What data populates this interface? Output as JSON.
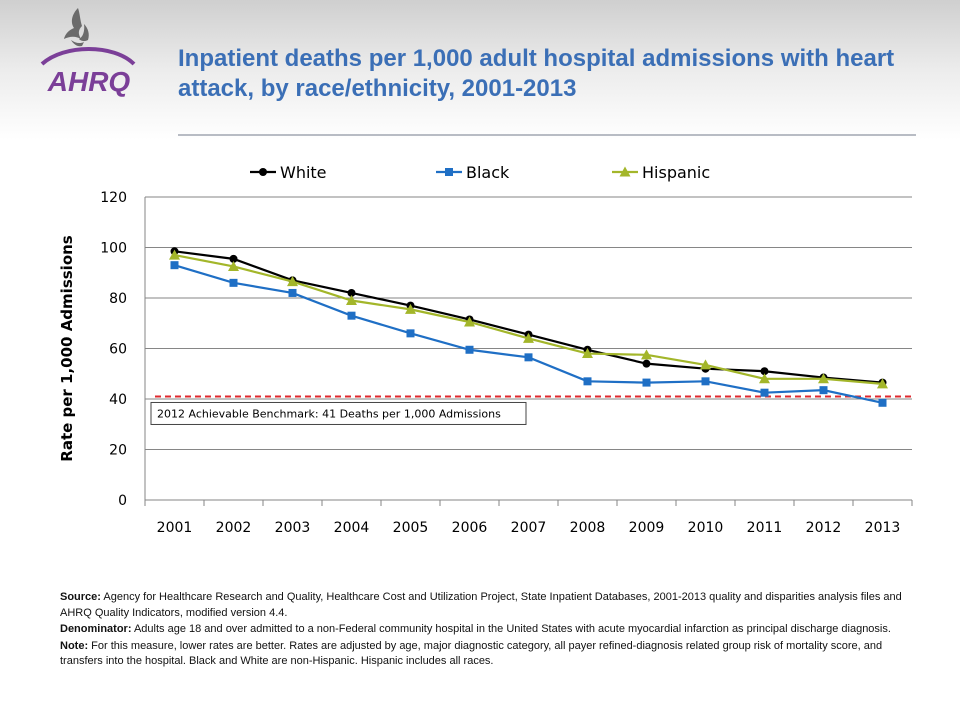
{
  "header": {
    "logo_text": "AHRQ",
    "title": "Inpatient deaths per 1,000 adult hospital admissions with heart attack, by race/ethnicity, 2001-2013"
  },
  "colors": {
    "title": "#3b6fb6",
    "white_series": "#000000",
    "black_series": "#1f6fc5",
    "hispanic_series": "#a3b62a",
    "benchmark": "#e0282e",
    "logo_purple": "#7b3f98"
  },
  "chart_data": {
    "type": "line",
    "title": "",
    "xlabel": "",
    "ylabel": "Rate per 1,000 Admissions",
    "ylim": [
      0,
      120
    ],
    "yticks": [
      "0",
      "20",
      "40",
      "60",
      "80",
      "100",
      "120"
    ],
    "grid": true,
    "legend_position": "top",
    "categories": [
      "2001",
      "2002",
      "2003",
      "2004",
      "2005",
      "2006",
      "2007",
      "2008",
      "2009",
      "2010",
      "2011",
      "2012",
      "2013"
    ],
    "series": [
      {
        "name": "White",
        "marker": "circle",
        "values": [
          98.5,
          95.5,
          87,
          82,
          77,
          71.5,
          65.5,
          59.5,
          54,
          52,
          51,
          48.5,
          46.5
        ]
      },
      {
        "name": "Black",
        "marker": "square",
        "values": [
          93,
          86,
          82,
          73,
          66,
          59.5,
          56.5,
          47,
          46.5,
          47,
          42.5,
          43.5,
          38.5
        ]
      },
      {
        "name": "Hispanic",
        "marker": "triangle",
        "values": [
          97,
          92.5,
          86.5,
          79,
          75.5,
          70.5,
          64,
          58,
          57.5,
          53.5,
          48,
          48,
          46
        ]
      }
    ],
    "benchmark": {
      "value": 41,
      "label": "2012 Achievable Benchmark: 41 Deaths per 1,000 Admissions"
    }
  },
  "notes": {
    "source_label": "Source:",
    "source_text": "Agency for Healthcare Research and Quality, Healthcare Cost and Utilization Project, State Inpatient Databases, 2001-2013 quality and disparities analysis files and AHRQ Quality Indicators, modified version 4.4.",
    "denominator_label": "Denominator:",
    "denominator_text": "Adults age 18 and over admitted to a non-Federal community hospital in the United States with acute myocardial infarction as principal discharge diagnosis.",
    "note_label": "Note:",
    "note_text": "For this measure, lower rates are better. Rates are adjusted by age, major diagnostic category, all payer refined-diagnosis related group risk of mortality score, and transfers into the hospital. Black and White are non-Hispanic. Hispanic includes all races."
  }
}
